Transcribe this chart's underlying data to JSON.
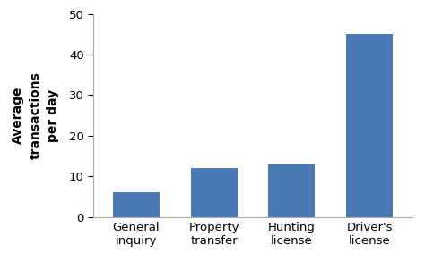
{
  "categories": [
    "General\ninquiry",
    "Property\ntransfer",
    "Hunting\nlicense",
    "Driver's\nlicense"
  ],
  "values": [
    6,
    12,
    13,
    45
  ],
  "bar_color": "#4a7ab5",
  "ylabel": "Average\ntransactions\nper day",
  "ylim": [
    0,
    50
  ],
  "yticks": [
    0,
    10,
    20,
    30,
    40,
    50
  ],
  "bar_width": 0.6,
  "ylabel_fontsize": 10,
  "tick_fontsize": 9.5,
  "background_color": "#ffffff",
  "figsize": [
    4.74,
    3.11
  ],
  "dpi": 100
}
